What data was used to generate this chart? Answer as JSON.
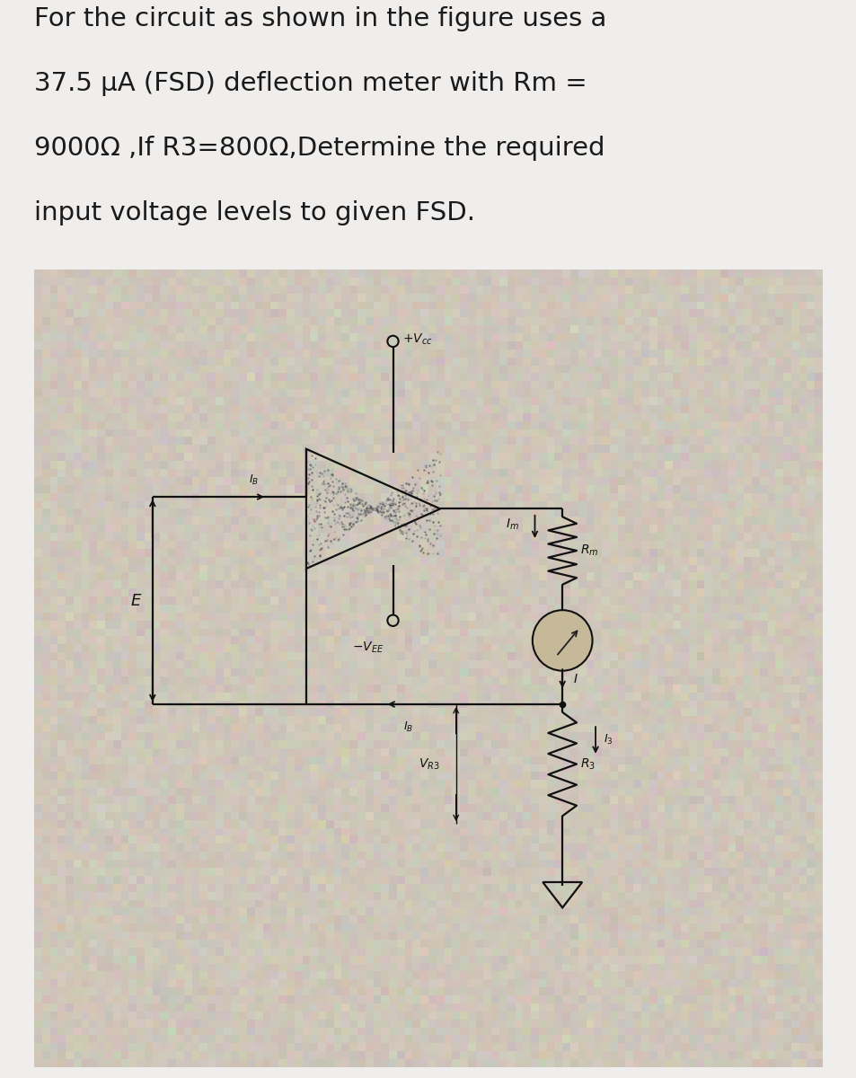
{
  "title_lines": [
    "For the circuit as shown in the figure uses a",
    "37.5 μA (FSD) deflection meter with Rm =",
    "9000Ω ,If R3=800Ω,Determine the required",
    "input voltage levels to given FSD."
  ],
  "background_color": "#f0eeec",
  "image_bg": "#b8ac98",
  "title_fontsize": 21,
  "title_color": "#1a1a1a",
  "fig_width": 9.54,
  "fig_height": 12.0,
  "line_color": "#111111",
  "lw": 1.6
}
